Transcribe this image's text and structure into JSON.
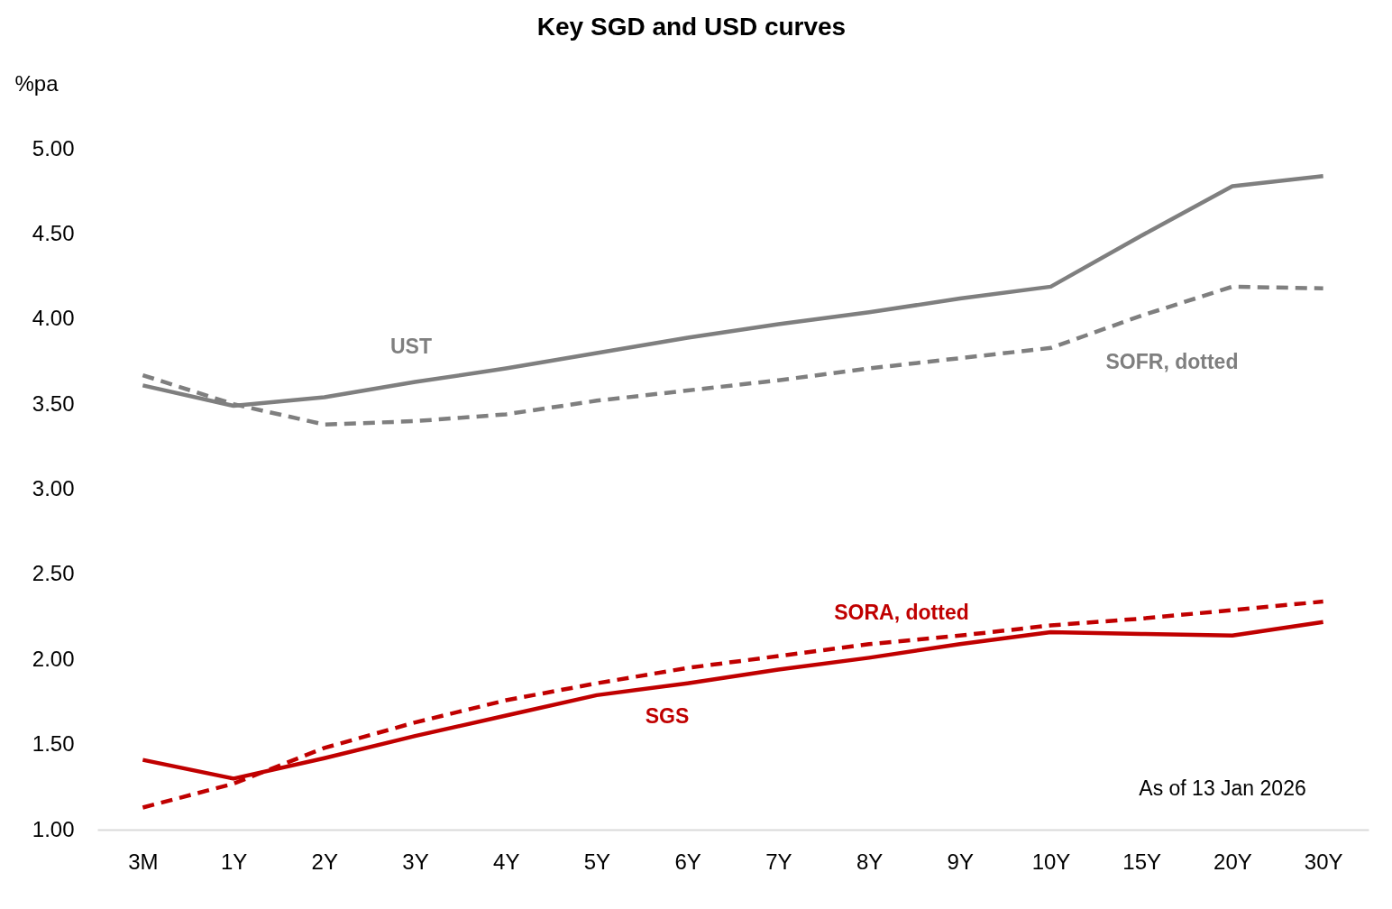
{
  "chart_data": {
    "type": "line",
    "title": "Key SGD and USD curves",
    "ylabel": "%pa",
    "categories": [
      "3M",
      "1Y",
      "2Y",
      "3Y",
      "4Y",
      "5Y",
      "6Y",
      "7Y",
      "8Y",
      "9Y",
      "10Y",
      "15Y",
      "20Y",
      "30Y"
    ],
    "ylim": [
      1,
      5
    ],
    "yticks": [
      {
        "value": 1,
        "label": "1.00"
      },
      {
        "value": 1.5,
        "label": "1.50"
      },
      {
        "value": 2,
        "label": "2.00"
      },
      {
        "value": 2.5,
        "label": "2.50"
      },
      {
        "value": 3,
        "label": "3.00"
      },
      {
        "value": 3.5,
        "label": "3.50"
      },
      {
        "value": 4,
        "label": "4.00"
      },
      {
        "value": 4.5,
        "label": "4.50"
      },
      {
        "value": 5,
        "label": "5.00"
      }
    ],
    "series": [
      {
        "name": "UST",
        "color": "#7f7f7f",
        "line_style": "solid",
        "values": [
          3.61,
          3.49,
          3.54,
          3.63,
          3.71,
          3.8,
          3.89,
          3.97,
          4.04,
          4.12,
          4.19,
          4.49,
          4.78,
          4.84
        ]
      },
      {
        "name": "SOFR, dotted",
        "color": "#7f7f7f",
        "line_style": "dashed",
        "values": [
          3.67,
          3.5,
          3.38,
          3.4,
          3.44,
          3.52,
          3.58,
          3.64,
          3.71,
          3.77,
          3.83,
          4.02,
          4.19,
          4.18
        ]
      },
      {
        "name": "SGS",
        "color": "#c00000",
        "line_style": "solid",
        "values": [
          1.41,
          1.3,
          1.42,
          1.55,
          1.67,
          1.79,
          1.86,
          1.94,
          2.01,
          2.09,
          2.16,
          2.15,
          2.14,
          2.22
        ]
      },
      {
        "name": "SORA, dotted",
        "color": "#c00000",
        "line_style": "dashed",
        "values": [
          1.13,
          1.27,
          1.48,
          1.63,
          1.76,
          1.86,
          1.95,
          2.02,
          2.09,
          2.14,
          2.2,
          2.24,
          2.29,
          2.34
        ]
      }
    ],
    "annotations": [
      "As of 13 Jan 2026"
    ]
  }
}
